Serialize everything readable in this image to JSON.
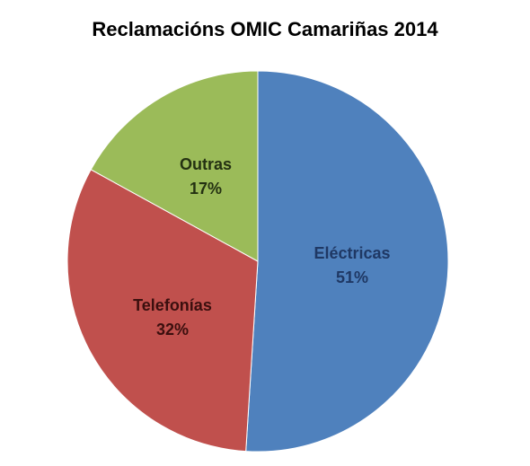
{
  "chart_data": {
    "type": "pie",
    "title": "Reclamacións OMIC Camariñas 2014",
    "slices": [
      {
        "label": "Eléctricas",
        "value": 51,
        "value_label": "51%",
        "color": "#4f81bd",
        "text_color": "#1f3864"
      },
      {
        "label": "Telefonías",
        "value": 32,
        "value_label": "32%",
        "color": "#c0504d",
        "text_color": "#3b0f0e"
      },
      {
        "label": "Outras",
        "value": 17,
        "value_label": "17%",
        "color": "#9bbb59",
        "text_color": "#243112"
      }
    ],
    "start": "12 o'clock",
    "direction": "clockwise",
    "legend": "none",
    "data_labels": "inside"
  }
}
